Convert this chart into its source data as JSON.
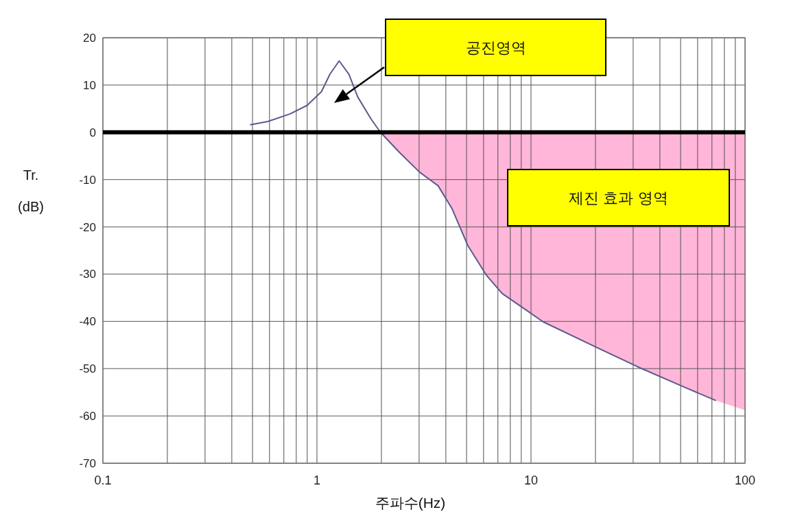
{
  "chart_data": {
    "type": "line",
    "xlabel": "주파수(Hz)",
    "ylabel": "Tr. (dB)",
    "log": "x",
    "grid": true,
    "xlim": [
      0.1,
      100
    ],
    "ylim": [
      -70,
      20
    ],
    "xticks": [
      0.1,
      {
        "value": 0.2,
        "label": null
      },
      {
        "value": 0.3,
        "label": null
      },
      {
        "value": 0.4,
        "label": null
      },
      {
        "value": 0.5,
        "label": null
      },
      {
        "value": 0.6,
        "label": null
      },
      {
        "value": 0.7,
        "label": null
      },
      {
        "value": 0.8,
        "label": null
      },
      {
        "value": 0.9,
        "label": null
      },
      1,
      {
        "value": 2,
        "label": null
      },
      {
        "value": 3,
        "label": null
      },
      {
        "value": 4,
        "label": null
      },
      {
        "value": 5,
        "label": null
      },
      {
        "value": 6,
        "label": null
      },
      {
        "value": 7,
        "label": null
      },
      {
        "value": 8,
        "label": null
      },
      {
        "value": 9,
        "label": null
      },
      10,
      {
        "value": 20,
        "label": null
      },
      {
        "value": 30,
        "label": null
      },
      {
        "value": 40,
        "label": null
      },
      {
        "value": 50,
        "label": null
      },
      {
        "value": 60,
        "label": null
      },
      {
        "value": 70,
        "label": null
      },
      {
        "value": 80,
        "label": null
      },
      {
        "value": 90,
        "label": null
      },
      100
    ],
    "yticks": [
      20,
      10,
      0,
      -10,
      -20,
      -30,
      -40,
      -50,
      -60,
      -70
    ],
    "series": [
      {
        "type": "area",
        "color": "#ffb6d9",
        "x": [
          1.98,
          2.41,
          3.01,
          3.68,
          4.27,
          5.06,
          6.18,
          7.33,
          9.35,
          11.4,
          20.7,
          31.5,
          51.4,
          72.7,
          100
        ],
        "values": [
          0,
          -4.1,
          -8.4,
          -11.3,
          -16.1,
          -23.9,
          -30.2,
          -34.1,
          -37.4,
          -40.1,
          -45.7,
          -49.6,
          -53.8,
          -56.7,
          -58.8
        ]
      },
      {
        "color": "#5a5a8c",
        "x": [
          0.49,
          0.59,
          0.75,
          0.9,
          1.05,
          1.15,
          1.27,
          1.41,
          1.55,
          1.79,
          1.98,
          2.41,
          3.01,
          3.68,
          4.27,
          5.06,
          6.18,
          7.33,
          9.35,
          11.4,
          20.7,
          31.5,
          51.4,
          72.7
        ],
        "values": [
          1.6,
          2.3,
          3.9,
          5.7,
          8.6,
          12.3,
          15.1,
          12.3,
          7.5,
          2.8,
          0,
          -4.1,
          -8.4,
          -11.3,
          -16.1,
          -23.9,
          -30.2,
          -34.1,
          -37.4,
          -40.1,
          -45.7,
          -49.6,
          -53.8,
          -56.7
        ]
      }
    ],
    "ref_lines": [
      {
        "axis": "y",
        "value": 0,
        "color": "#000000"
      }
    ],
    "annotations": [
      "공진영역",
      "제진 효과 영역"
    ]
  }
}
